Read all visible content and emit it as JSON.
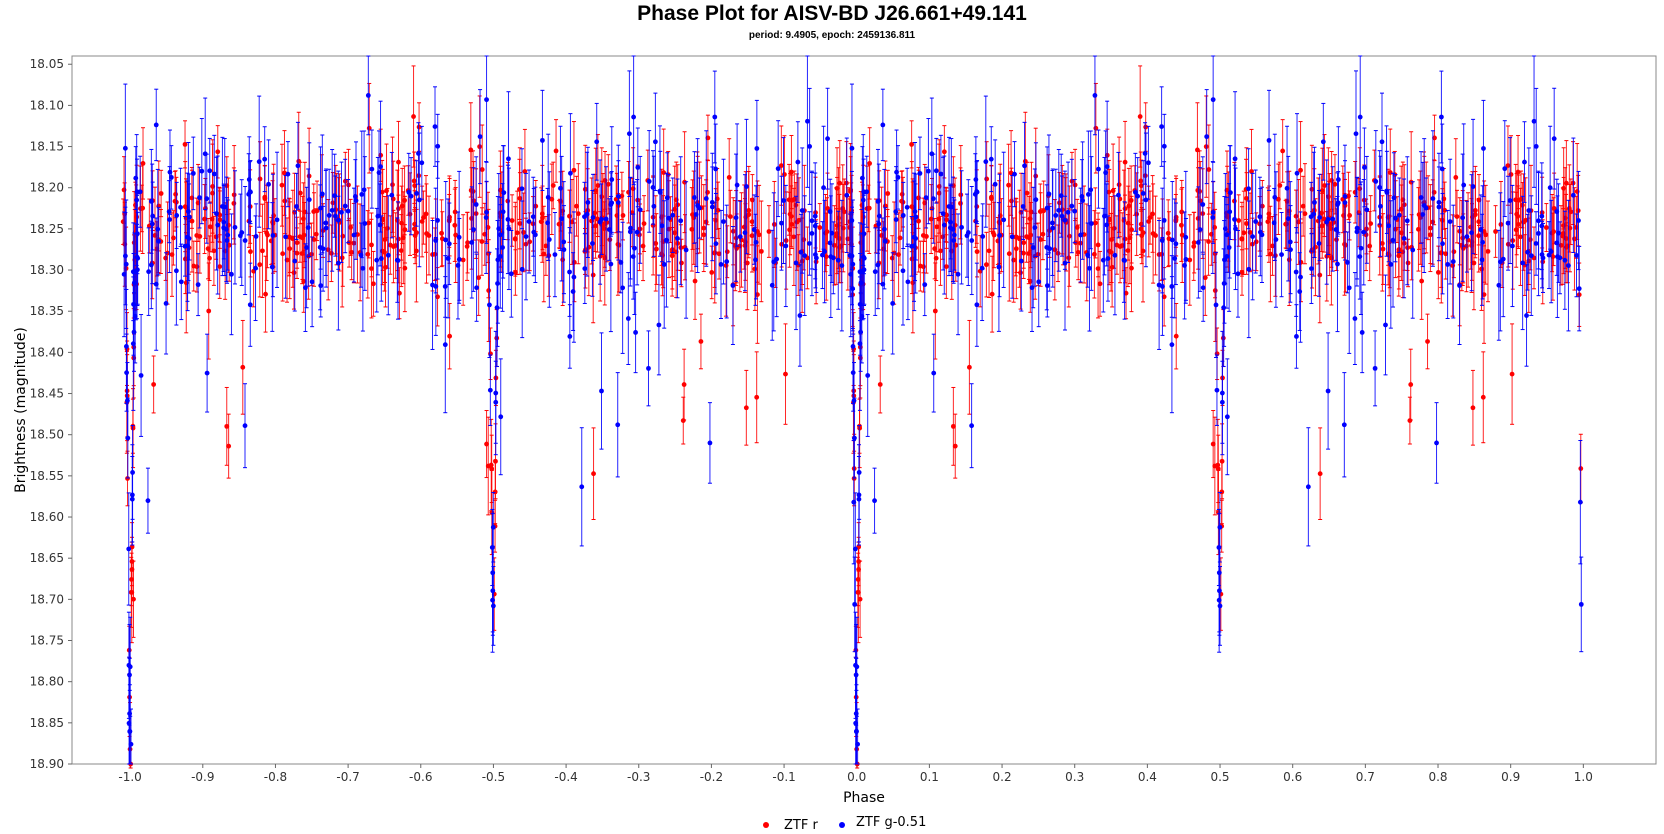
{
  "chart_data": {
    "type": "scatter",
    "title": "Phase Plot for AISV-BD J26.661+49.141",
    "subtitle": "period: 9.4905, epoch: 2459136.811",
    "xlabel": "Phase",
    "ylabel": "Brightness (magnitude)",
    "xlim": [
      -1.08,
      1.1
    ],
    "ylim": [
      18.04,
      18.9
    ],
    "y_inverted": true,
    "x_ticks": [
      "-1.0",
      "-0.9",
      "-0.8",
      "-0.7",
      "-0.6",
      "-0.5",
      "-0.4",
      "-0.3",
      "-0.2",
      "-0.1",
      "0.0",
      "0.1",
      "0.2",
      "0.3",
      "0.4",
      "0.5",
      "0.6",
      "0.7",
      "0.8",
      "0.9",
      "1.0"
    ],
    "y_ticks": [
      "18.05",
      "18.10",
      "18.15",
      "18.20",
      "18.25",
      "18.30",
      "18.35",
      "18.40",
      "18.45",
      "18.50",
      "18.55",
      "18.60",
      "18.65",
      "18.70",
      "18.75",
      "18.80",
      "18.85",
      "18.90"
    ],
    "grid": false,
    "legend_position": "bottom-center",
    "baseline_mag": 18.245,
    "eclipses": [
      {
        "phase": 0.0,
        "min_mag": 18.87,
        "type": "primary"
      },
      {
        "phase": 0.5,
        "min_mag": 18.72,
        "type": "secondary"
      }
    ],
    "series": [
      {
        "name": "ZTF r",
        "color": "#ff0000",
        "scatter_mag": 0.035,
        "error_mag": 0.045,
        "point_count": 460
      },
      {
        "name": "ZTF g-0.51",
        "color": "#0000ff",
        "scatter_mag": 0.05,
        "error_mag": 0.06,
        "point_count": 330
      }
    ]
  }
}
